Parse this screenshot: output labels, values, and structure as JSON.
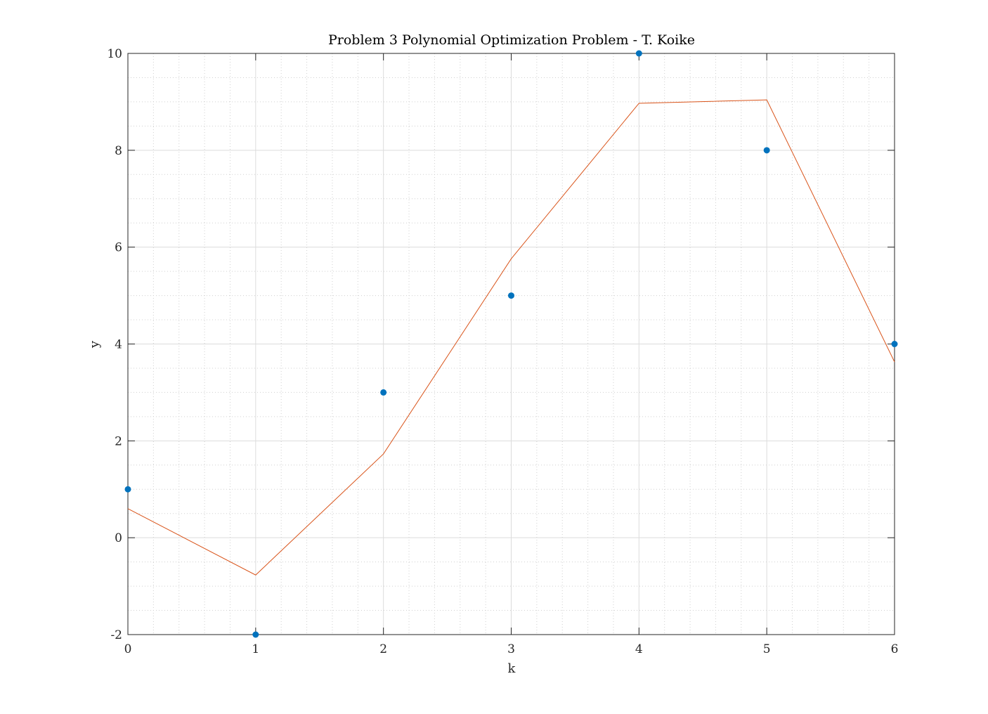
{
  "chart_data": {
    "type": "scatter",
    "title": "Problem 3 Polynomial Optimization Problem - T. Koike",
    "xlabel": "k",
    "ylabel": "y",
    "xlim": [
      0,
      6
    ],
    "ylim": [
      -2,
      10
    ],
    "xticks": [
      "0",
      "1",
      "2",
      "3",
      "4",
      "5",
      "6"
    ],
    "yticks": [
      "-2",
      "0",
      "2",
      "4",
      "6",
      "8",
      "10"
    ],
    "grid": true,
    "minor_grid": true,
    "series": [
      {
        "kind": "scatter",
        "color": "#0072BD",
        "x": [
          0,
          1,
          2,
          3,
          4,
          5,
          6
        ],
        "y": [
          1,
          -2,
          3,
          5,
          10,
          8,
          4
        ]
      },
      {
        "kind": "line",
        "color": "#D95319",
        "x": [
          0,
          1,
          2,
          3,
          4,
          5,
          6
        ],
        "y": [
          0.6,
          -0.77,
          1.73,
          5.76,
          8.97,
          9.04,
          3.63
        ]
      }
    ]
  }
}
